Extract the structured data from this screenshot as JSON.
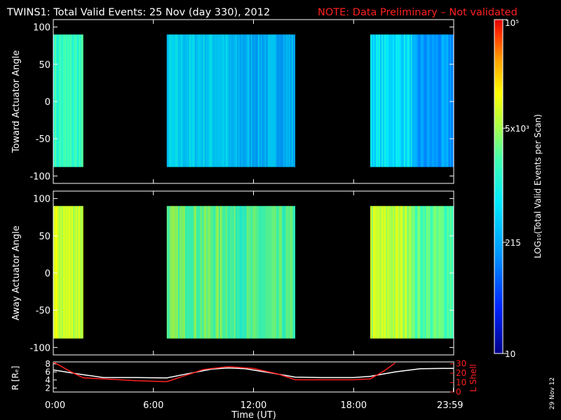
{
  "header": {
    "title": "TWINS1: Total Valid Events: 25 Nov (day 330), 2012",
    "note": "NOTE: Data Preliminary – Not validated",
    "note_color": "#ff2020"
  },
  "side_stamp": "29 Nov 12",
  "colorbar": {
    "label": "LOG₁₀(Total Valid Events per Scan)",
    "ticks": [
      "10⁵",
      "5x10³",
      "215",
      "10"
    ],
    "tick_values": [
      100000,
      5000,
      215,
      10
    ]
  },
  "chart_data": [
    {
      "type": "heatmap",
      "panel": "toward",
      "ylabel": "Toward Actuator Angle",
      "yticks": [
        "100",
        "50",
        "0",
        "-50",
        "-100"
      ],
      "ytick_values": [
        100,
        50,
        0,
        -50,
        -100
      ],
      "ylim": [
        -110,
        110
      ],
      "xlim": [
        0,
        24
      ],
      "angle_range": [
        -88,
        90
      ],
      "color_scale": "log",
      "value_range": [
        10,
        100000
      ],
      "data_intervals_ut_hours": [
        [
          0.0,
          1.8
        ],
        [
          6.8,
          14.5
        ],
        [
          19.0,
          23.98
        ]
      ],
      "segments": [
        {
          "start": 0.0,
          "end": 1.8,
          "level": 0.55
        },
        {
          "start": 6.8,
          "end": 10.5,
          "level": 0.42
        },
        {
          "start": 10.5,
          "end": 14.5,
          "level": 0.36
        },
        {
          "start": 19.0,
          "end": 21.5,
          "level": 0.44
        },
        {
          "start": 21.5,
          "end": 23.98,
          "level": 0.3
        }
      ]
    },
    {
      "type": "heatmap",
      "panel": "away",
      "ylabel": "Away Actuator Angle",
      "yticks": [
        "100",
        "50",
        "0",
        "-50",
        "-100"
      ],
      "ytick_values": [
        100,
        50,
        0,
        -50,
        -100
      ],
      "ylim": [
        -110,
        110
      ],
      "xlim": [
        0,
        24
      ],
      "angle_range": [
        -88,
        90
      ],
      "color_scale": "log",
      "value_range": [
        10,
        100000
      ],
      "data_intervals_ut_hours": [
        [
          0.0,
          1.8
        ],
        [
          6.8,
          14.5
        ],
        [
          19.0,
          23.98
        ]
      ],
      "segments": [
        {
          "start": 0.0,
          "end": 1.8,
          "level": 0.72
        },
        {
          "start": 6.8,
          "end": 10.5,
          "level": 0.62
        },
        {
          "start": 10.5,
          "end": 14.5,
          "level": 0.58
        },
        {
          "start": 19.0,
          "end": 21.5,
          "level": 0.7
        },
        {
          "start": 21.5,
          "end": 23.98,
          "level": 0.6
        }
      ]
    },
    {
      "type": "line",
      "panel": "orbit",
      "xlabel": "Time (UT)",
      "xticks": [
        "0:00",
        "6:00",
        "12:00",
        "18:00",
        "23:59"
      ],
      "xtick_values": [
        0,
        6,
        12,
        18,
        23.98
      ],
      "xlim": [
        0,
        24
      ],
      "left_axis": {
        "label": "R [Rₑ]",
        "ticks": [
          "8",
          "6",
          "4",
          "2"
        ],
        "tick_values": [
          8,
          6,
          4,
          2
        ],
        "ylim": [
          1,
          8.5
        ]
      },
      "right_axis": {
        "label": "L Shell",
        "ticks": [
          "30",
          "20",
          "10",
          "0"
        ],
        "tick_values": [
          30,
          20,
          10,
          0
        ],
        "ylim": [
          0,
          32
        ]
      },
      "series": [
        {
          "color": "#ffffff",
          "axis": "left",
          "x": [
            0,
            1.5,
            3,
            5,
            6.8,
            8,
            9.5,
            10.5,
            11.5,
            13,
            14.5,
            16,
            18,
            19,
            20.5,
            22,
            23.98
          ],
          "y": [
            6.5,
            5.5,
            4.6,
            4.6,
            4.5,
            5.5,
            6.7,
            7.0,
            6.8,
            5.8,
            4.7,
            4.6,
            4.6,
            4.9,
            6.0,
            6.8,
            6.9
          ]
        },
        {
          "color": "#ff2020",
          "axis": "right",
          "x": [
            0,
            1,
            1.8,
            3,
            5,
            6.8,
            8,
            9,
            10.5,
            12,
            13.5,
            14.5,
            16,
            18,
            19,
            19.8,
            20.5
          ],
          "y": [
            32,
            22,
            15,
            14,
            12,
            11,
            18,
            24,
            27,
            25,
            19,
            13,
            13,
            13,
            14,
            22,
            31
          ]
        }
      ]
    }
  ]
}
